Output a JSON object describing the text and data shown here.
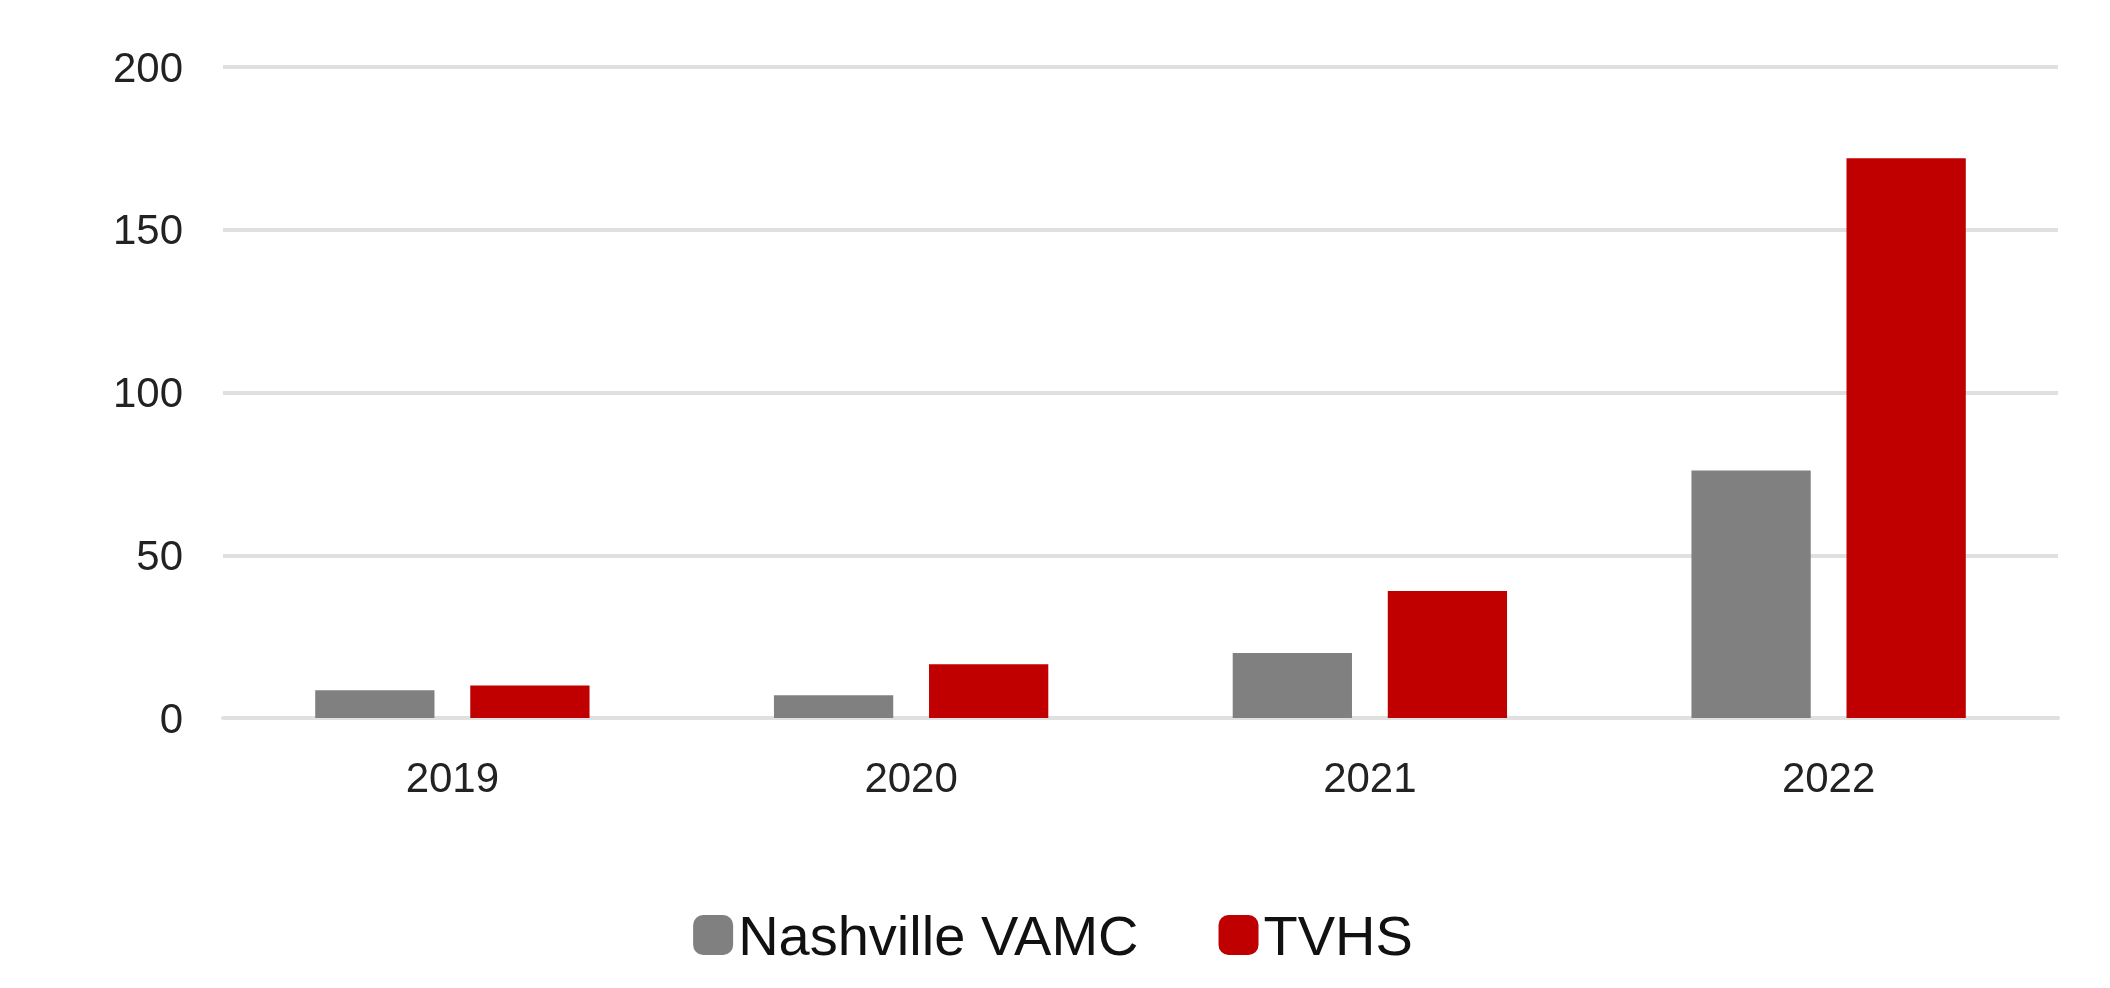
{
  "chart_data": {
    "type": "bar",
    "categories": [
      "2019",
      "2020",
      "2021",
      "2022"
    ],
    "series": [
      {
        "name": "Nashville VAMC",
        "color": "#808080",
        "values": [
          8.5,
          7,
          20,
          76
        ]
      },
      {
        "name": "TVHS",
        "color": "#c00000",
        "values": [
          10,
          16.5,
          39,
          172
        ]
      }
    ],
    "ylim": [
      0,
      200
    ],
    "yticks": [
      0,
      50,
      100,
      150,
      200
    ],
    "grid": "y",
    "legend": "bottom"
  }
}
